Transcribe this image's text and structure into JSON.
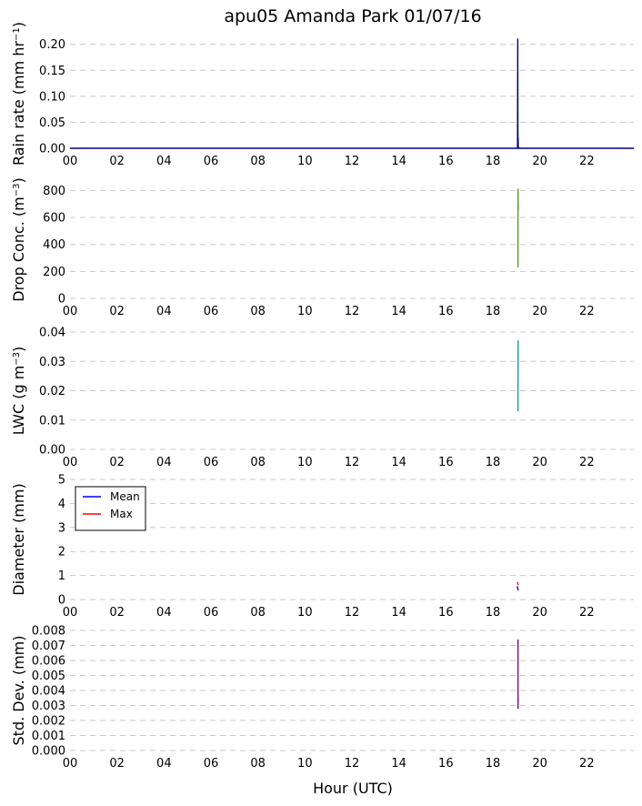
{
  "chart_data": {
    "type": "line",
    "title": "apu05 Amanda Park 01/07/16",
    "xlabel": "Hour (UTC)",
    "xlim": [
      0,
      24
    ],
    "x_ticks": [
      0,
      2,
      4,
      6,
      8,
      10,
      12,
      14,
      16,
      18,
      20,
      22
    ],
    "x_tick_labels": [
      "00",
      "02",
      "04",
      "06",
      "08",
      "10",
      "12",
      "14",
      "16",
      "18",
      "20",
      "22"
    ],
    "grid": "horizontal dashed",
    "panels": [
      {
        "id": "rain",
        "ylabel": "Rain rate (mm hr",
        "ylabel_sup": "−1",
        "ylabel_tail": ")",
        "ylim": [
          0,
          0.21
        ],
        "y_ticks": [
          0,
          0.05,
          0.1,
          0.15,
          0.2
        ],
        "y_tick_labels": [
          "0.00",
          "0.05",
          "0.10",
          "0.15",
          "0.20"
        ],
        "series": [
          {
            "color": "#000080",
            "x": [
              0,
              19.05,
              19.06,
              19.065,
              19.07,
              19.075,
              19.08,
              19.09,
              19.1,
              24
            ],
            "y": [
              0,
              0,
              0.21,
              0.03,
              0.01,
              0.02,
              0.005,
              0,
              0,
              0
            ]
          }
        ]
      },
      {
        "id": "conc",
        "ylabel": "Drop Conc. (m",
        "ylabel_sup": "−3",
        "ylabel_tail": ")",
        "ylim": [
          0,
          870
        ],
        "y_ticks": [
          0,
          200,
          400,
          600,
          800
        ],
        "y_tick_labels": [
          "0",
          "200",
          "400",
          "600",
          "800"
        ],
        "series": [
          {
            "color": "#5a9a2a",
            "x": [
              19.07,
              19.07,
              19.075,
              19.075,
              19.08
            ],
            "y": [
              230,
              640,
              810,
              650,
              700
            ]
          }
        ]
      },
      {
        "id": "lwc",
        "ylabel": "LWC (g m",
        "ylabel_sup": "−3",
        "ylabel_tail": ")",
        "ylim": [
          0,
          0.04
        ],
        "y_ticks": [
          0,
          0.01,
          0.02,
          0.03,
          0.04
        ],
        "y_tick_labels": [
          "0.00",
          "0.01",
          "0.02",
          "0.03",
          "0.04"
        ],
        "series": [
          {
            "color": "#1e9a9a",
            "x": [
              19.07,
              19.07,
              19.075,
              19.075
            ],
            "y": [
              0.013,
              0.02,
              0.037,
              0.025
            ]
          }
        ]
      },
      {
        "id": "diam",
        "ylabel": "Diameter (mm)",
        "ylim": [
          0,
          5
        ],
        "y_ticks": [
          0,
          1,
          2,
          3,
          4,
          5
        ],
        "y_tick_labels": [
          "0",
          "1",
          "2",
          "3",
          "4",
          "5"
        ],
        "legend": "top-left",
        "series": [
          {
            "name": "Mean",
            "color": "#0000ff",
            "x": [
              19.04,
              19.06,
              19.08
            ],
            "y": [
              0.55,
              0.45,
              0.38
            ]
          },
          {
            "name": "Max",
            "color": "#ff0000",
            "x": [
              19.04,
              19.06,
              19.08
            ],
            "y": [
              0.72,
              0.68,
              0.6
            ]
          }
        ]
      },
      {
        "id": "std",
        "ylabel": "Std. Dev. (mm)",
        "ylim": [
          0,
          0.008
        ],
        "y_ticks": [
          0,
          0.001,
          0.002,
          0.003,
          0.004,
          0.005,
          0.006,
          0.007,
          0.008
        ],
        "y_tick_labels": [
          "0.000",
          "0.001",
          "0.002",
          "0.003",
          "0.004",
          "0.005",
          "0.006",
          "0.007",
          "0.008"
        ],
        "series": [
          {
            "color": "#7a0a80",
            "x": [
              19.07,
              19.07,
              19.075,
              19.075
            ],
            "y": [
              0.0074,
              0.004,
              0.0028,
              0.0035
            ]
          }
        ]
      }
    ]
  }
}
